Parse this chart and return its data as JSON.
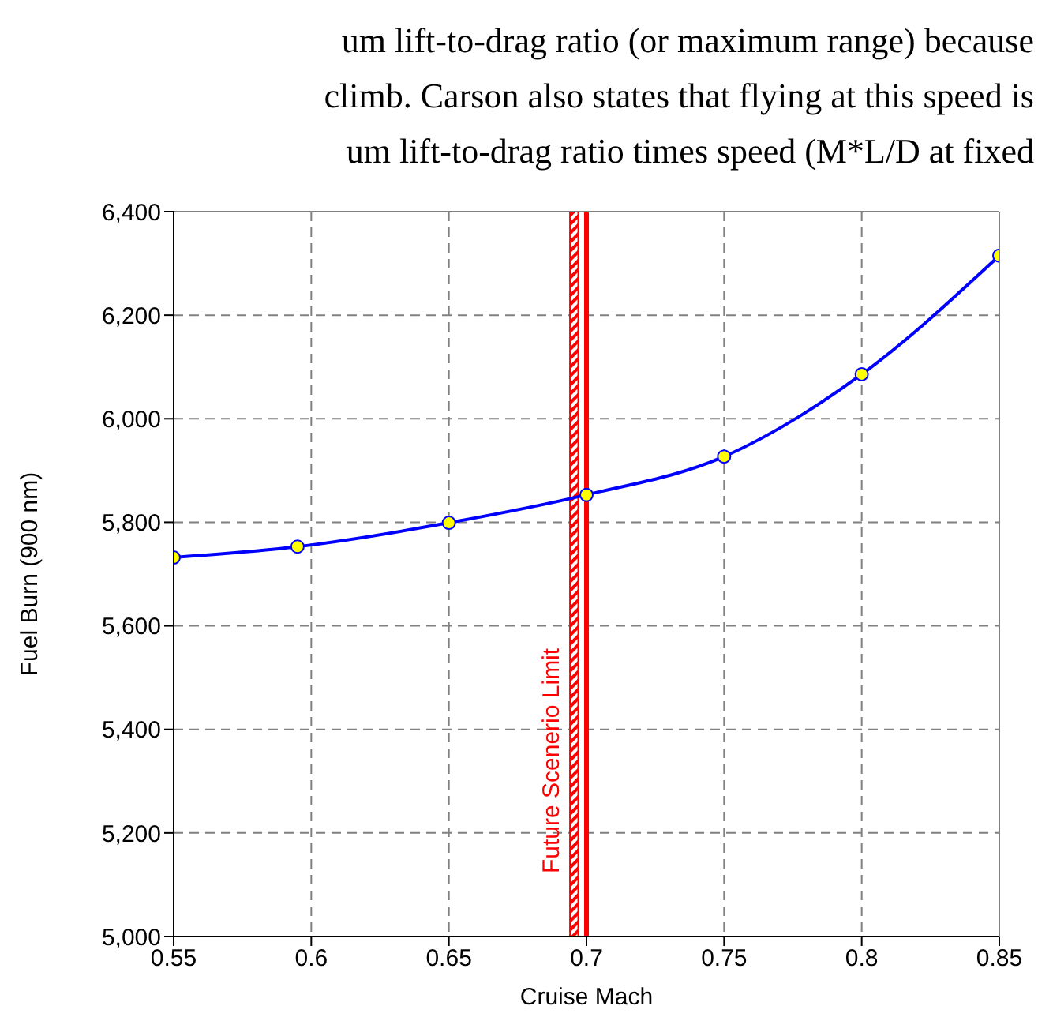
{
  "chart_data": {
    "type": "line",
    "annotations": [
      "um lift-to-drag ratio (or maximum range) because",
      "climb. Carson also states that flying at this speed is",
      "um lift-to-drag ratio times speed (M*L/D at fixed"
    ],
    "xlabel": "Cruise Mach",
    "ylabel": "Fuel Burn (900 nm)",
    "x": [
      0.55,
      0.595,
      0.65,
      0.7,
      0.75,
      0.8,
      0.85
    ],
    "series": [
      {
        "color": "#0000ff",
        "values": [
          5732,
          5753,
          5799,
          5853,
          5927,
          6086,
          6315
        ]
      }
    ],
    "xlim": [
      0.55,
      0.85
    ],
    "xticks": [
      0.55,
      0.6,
      0.65,
      0.7,
      0.75,
      0.8,
      0.85
    ],
    "ylim": [
      5000,
      6400
    ],
    "yticks": [
      {
        "value": 5000,
        "label": "5,000"
      },
      {
        "value": 5200,
        "label": "5,200"
      },
      {
        "value": 5400,
        "label": "5,400"
      },
      {
        "value": 5600,
        "label": "5,600"
      },
      {
        "value": 5800,
        "label": "5,800"
      },
      {
        "value": 6000,
        "label": "6,000"
      },
      {
        "value": 6200,
        "label": "6,200"
      },
      {
        "value": 6400,
        "label": "6,400"
      }
    ],
    "ref_lines": [
      {
        "axis": "x",
        "value": 0.7,
        "label": "Future Scenerio Limit",
        "color": "#ff0000"
      }
    ],
    "bands": [
      {
        "axis": "x",
        "from": 0.694,
        "to": 0.697,
        "color": "#ff0000"
      }
    ],
    "grid": true,
    "marker": "circle",
    "line_style": "solid"
  }
}
